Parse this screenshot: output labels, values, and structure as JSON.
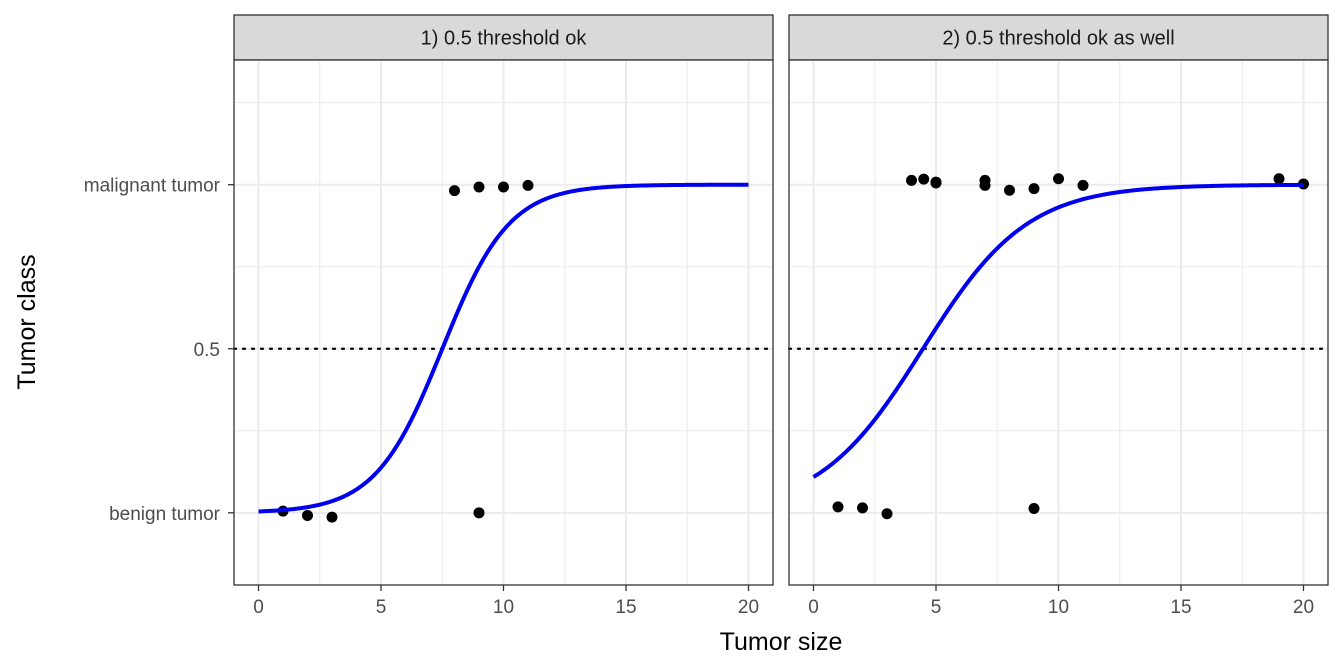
{
  "chart_data": {
    "type": "scatter",
    "xlabel": "Tumor size",
    "ylabel": "Tumor class",
    "xlim": [
      0,
      20
    ],
    "x_ticks": [
      0,
      5,
      10,
      15,
      20
    ],
    "x_tick_labels": [
      "0",
      "5",
      "10",
      "15",
      "20"
    ],
    "ylim": [
      -0.22,
      1.38
    ],
    "y_ticks": [
      0,
      0.5,
      1
    ],
    "y_tick_labels": [
      "benign tumor",
      "0.5",
      "malignant tumor"
    ],
    "threshold": 0.5,
    "grid": true,
    "colors": {
      "curve": "#0000ee",
      "points": "#000000",
      "strip": "#d9d9d9",
      "grid": "#ebebeb",
      "threshold": "#000000"
    },
    "panels": [
      {
        "title": "1) 0.5 threshold ok",
        "points": [
          {
            "x": 1,
            "y": 0.005
          },
          {
            "x": 2,
            "y": -0.008
          },
          {
            "x": 3,
            "y": -0.013
          },
          {
            "x": 9,
            "y": 0.0
          },
          {
            "x": 8,
            "y": 0.982
          },
          {
            "x": 9,
            "y": 0.993
          },
          {
            "x": 10,
            "y": 0.993
          },
          {
            "x": 11,
            "y": 0.998
          }
        ],
        "curve": {
          "type": "logistic",
          "intercept": -5.5,
          "slope": 0.733
        }
      },
      {
        "title": "2) 0.5 threshold ok as well",
        "points": [
          {
            "x": 1,
            "y": 0.018
          },
          {
            "x": 2,
            "y": 0.015
          },
          {
            "x": 3,
            "y": -0.003
          },
          {
            "x": 9,
            "y": 0.013
          },
          {
            "x": 4,
            "y": 1.013
          },
          {
            "x": 4.5,
            "y": 1.017
          },
          {
            "x": 5,
            "y": 1.008
          },
          {
            "x": 5,
            "y": 1.005
          },
          {
            "x": 7,
            "y": 1.013
          },
          {
            "x": 7,
            "y": 0.998
          },
          {
            "x": 8,
            "y": 0.983
          },
          {
            "x": 9,
            "y": 0.988
          },
          {
            "x": 10,
            "y": 1.018
          },
          {
            "x": 11,
            "y": 0.998
          },
          {
            "x": 19,
            "y": 1.018
          },
          {
            "x": 20,
            "y": 1.002
          }
        ],
        "curve": {
          "type": "logistic",
          "intercept": -2.1,
          "slope": 0.47
        }
      }
    ]
  }
}
